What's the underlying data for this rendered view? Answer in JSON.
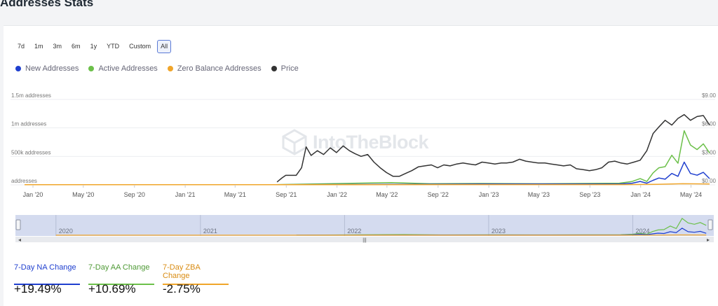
{
  "page": {
    "title": "Addresses Stats"
  },
  "range_buttons": [
    {
      "label": "7d"
    },
    {
      "label": "1m"
    },
    {
      "label": "3m"
    },
    {
      "label": "6m"
    },
    {
      "label": "1y"
    },
    {
      "label": "YTD"
    },
    {
      "label": "Custom"
    },
    {
      "label": "All",
      "active": true
    }
  ],
  "legend": [
    {
      "label": "New Addresses",
      "color": "#1f3fcf"
    },
    {
      "label": "Active Addresses",
      "color": "#6cc04a"
    },
    {
      "label": "Zero Balance Addresses",
      "color": "#f0a52a"
    },
    {
      "label": "Price",
      "color": "#333333"
    }
  ],
  "watermark": "IntoTheBlock",
  "chart_data": {
    "type": "line",
    "title": "",
    "left_axis_ticks": [
      "1.5m addresses",
      "1m addresses",
      "500k addresses",
      "addresses"
    ],
    "right_axis_ticks": [
      "$9.00",
      "$6.00",
      "$3.00",
      "$0.00"
    ],
    "x_ticks": [
      "Jan '20",
      "May '20",
      "Sep '20",
      "Jan '21",
      "May '21",
      "Sep '21",
      "Jan '22",
      "May '22",
      "Sep '22",
      "Jan '23",
      "May '23",
      "Sep '23",
      "Jan '24",
      "May '24"
    ],
    "ylim_left": [
      0,
      1500000
    ],
    "ylim_right": [
      0,
      9
    ],
    "series": [
      {
        "name": "Price",
        "axis": "right",
        "color": "#333333",
        "x": [
          "2021-08-30",
          "2021-09-10",
          "2021-09-20",
          "2021-09-30",
          "2021-10-15",
          "2021-10-28",
          "2021-11-08",
          "2021-11-20",
          "2021-12-05",
          "2021-12-20",
          "2022-01-05",
          "2022-01-20",
          "2022-02-05",
          "2022-02-20",
          "2022-03-05",
          "2022-03-20",
          "2022-04-05",
          "2022-04-20",
          "2022-05-05",
          "2022-05-20",
          "2022-06-05",
          "2022-06-20",
          "2022-07-05",
          "2022-07-20",
          "2022-08-05",
          "2022-08-20",
          "2022-09-05",
          "2022-09-20",
          "2022-10-05",
          "2022-10-20",
          "2022-11-05",
          "2022-11-20",
          "2022-12-05",
          "2022-12-20",
          "2023-01-05",
          "2023-01-20",
          "2023-02-05",
          "2023-02-20",
          "2023-03-05",
          "2023-03-20",
          "2023-04-05",
          "2023-04-20",
          "2023-05-05",
          "2023-05-20",
          "2023-06-05",
          "2023-06-20",
          "2023-07-05",
          "2023-07-20",
          "2023-08-05",
          "2023-08-20",
          "2023-09-05",
          "2023-09-20",
          "2023-10-05",
          "2023-10-20",
          "2023-11-05",
          "2023-11-20",
          "2023-12-05",
          "2023-12-20",
          "2024-01-05",
          "2024-01-20",
          "2024-02-05",
          "2024-02-20",
          "2024-03-05",
          "2024-03-20",
          "2024-04-05",
          "2024-04-20",
          "2024-05-05",
          "2024-05-20",
          "2024-06-05",
          "2024-06-20",
          "2024-07-05"
        ],
        "values": [
          0.3,
          0.7,
          1.0,
          1.0,
          1.0,
          1.8,
          4.0,
          3.1,
          3.6,
          3.2,
          3.9,
          3.4,
          4.1,
          3.6,
          3.3,
          3.0,
          3.2,
          2.4,
          1.8,
          1.3,
          0.9,
          0.9,
          1.2,
          1.5,
          1.9,
          2.0,
          2.1,
          1.8,
          2.1,
          2.0,
          2.2,
          2.3,
          2.2,
          2.1,
          2.4,
          2.3,
          2.2,
          2.3,
          2.3,
          2.4,
          2.7,
          2.5,
          2.4,
          2.3,
          2.3,
          2.2,
          2.1,
          2.0,
          2.1,
          1.7,
          1.6,
          1.5,
          1.6,
          1.8,
          2.4,
          2.5,
          2.3,
          2.2,
          2.4,
          2.6,
          3.6,
          5.4,
          6.1,
          6.8,
          6.3,
          7.0,
          7.4,
          6.8,
          7.2,
          7.3,
          6.3
        ]
      },
      {
        "name": "Active Addresses",
        "axis": "left",
        "color": "#6cc04a",
        "x": [
          "2021-09-01",
          "2022-01-01",
          "2022-06-01",
          "2022-09-01",
          "2023-01-01",
          "2023-06-01",
          "2023-12-01",
          "2024-01-01",
          "2024-01-20",
          "2024-02-05",
          "2024-02-20",
          "2024-03-05",
          "2024-03-20",
          "2024-04-05",
          "2024-04-20",
          "2024-05-05",
          "2024-05-20",
          "2024-06-05",
          "2024-06-20",
          "2024-07-05"
        ],
        "values": [
          5000,
          20000,
          40000,
          20000,
          25000,
          20000,
          30000,
          60000,
          110000,
          60000,
          210000,
          300000,
          320000,
          520000,
          380000,
          950000,
          700000,
          620000,
          720000,
          560000
        ]
      },
      {
        "name": "New Addresses",
        "axis": "left",
        "color": "#1f3fcf",
        "x": [
          "2021-09-01",
          "2022-06-01",
          "2023-01-01",
          "2023-12-01",
          "2024-01-01",
          "2024-01-20",
          "2024-02-05",
          "2024-02-20",
          "2024-03-05",
          "2024-03-20",
          "2024-04-05",
          "2024-04-20",
          "2024-05-05",
          "2024-05-20",
          "2024-06-05",
          "2024-06-20",
          "2024-07-05"
        ],
        "values": [
          2000,
          10000,
          15000,
          15000,
          30000,
          60000,
          30000,
          80000,
          120000,
          100000,
          200000,
          150000,
          400000,
          200000,
          170000,
          220000,
          110000
        ]
      },
      {
        "name": "Zero Balance Addresses",
        "axis": "left",
        "color": "#f0a52a",
        "x": [
          "2020-01-01",
          "2023-12-01",
          "2024-03-01",
          "2024-05-01",
          "2024-07-05"
        ],
        "values": [
          3000,
          5000,
          8000,
          20000,
          15000
        ]
      }
    ]
  },
  "navigator": {
    "years": [
      "2020",
      "2021",
      "2022",
      "2023",
      "2024"
    ],
    "handle": "|||",
    "selected_fraction": [
      0,
      1
    ]
  },
  "tabs": [
    {
      "label": "7-Day NA Change",
      "value": "+19.49%",
      "color": "#1f3fcf"
    },
    {
      "label": "7-Day AA Change",
      "value": "+10.69%",
      "color": "#6cc04a"
    },
    {
      "label": "7-Day ZBA Change",
      "value": "-2.75%",
      "color": "#f0a52a"
    }
  ]
}
